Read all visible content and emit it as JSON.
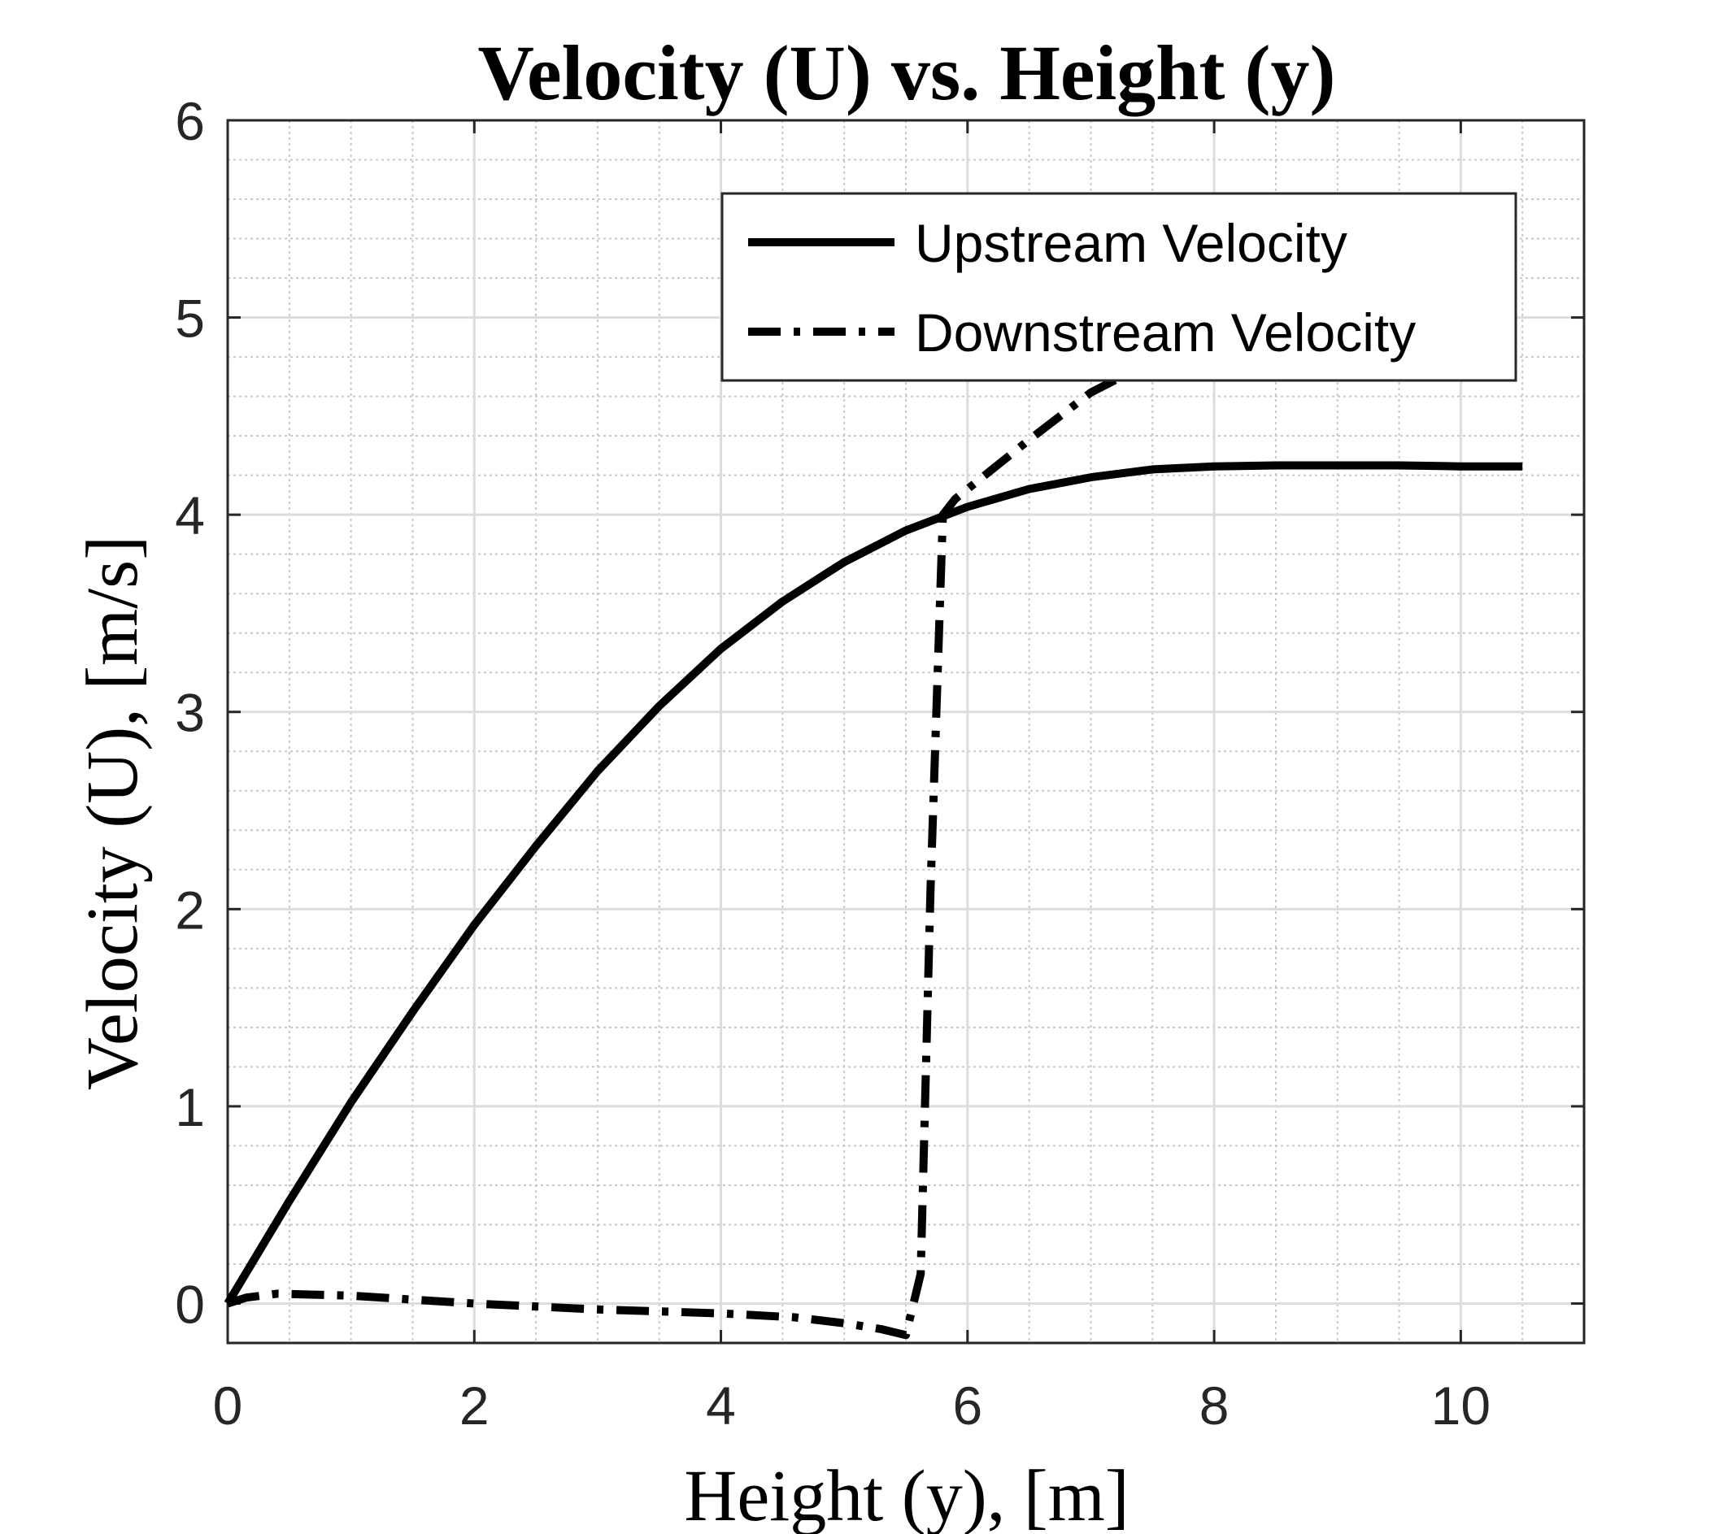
{
  "chart_data": {
    "type": "line",
    "title": "Velocity (U) vs. Height (y)",
    "xlabel": "Height (y), [m]",
    "ylabel": "Velocity (U), [m/s]",
    "xlim": [
      0,
      11
    ],
    "ylim": [
      -0.2,
      6
    ],
    "xticks": [
      0,
      2,
      4,
      6,
      8,
      10
    ],
    "yticks": [
      0,
      1,
      2,
      3,
      4,
      5,
      6
    ],
    "grid": true,
    "minor_grid": true,
    "legend": "top-right",
    "series": [
      {
        "name": "Upstream Velocity",
        "style": "solid",
        "color": "#000000",
        "x": [
          0,
          0.5,
          1,
          1.5,
          2,
          2.5,
          3,
          3.5,
          4,
          4.5,
          5,
          5.5,
          6,
          6.5,
          7,
          7.5,
          8,
          8.5,
          9,
          9.5,
          10,
          10.5
        ],
        "y": [
          0,
          0.52,
          1.02,
          1.48,
          1.92,
          2.32,
          2.7,
          3.03,
          3.32,
          3.56,
          3.76,
          3.92,
          4.04,
          4.13,
          4.19,
          4.23,
          4.245,
          4.25,
          4.25,
          4.25,
          4.245,
          4.245
        ]
      },
      {
        "name": "Downstream Velocity",
        "style": "dashdot",
        "color": "#000000",
        "x": [
          0,
          0.15,
          0.4,
          1,
          2,
          3,
          4,
          4.6,
          5,
          5.3,
          5.5,
          5.62,
          5.7,
          5.8,
          5.9,
          6.5,
          7,
          7.5,
          8,
          8.5,
          9,
          9.5,
          10,
          10.5
        ],
        "y": [
          0,
          0.03,
          0.05,
          0.04,
          0,
          -0.03,
          -0.05,
          -0.07,
          -0.1,
          -0.13,
          -0.16,
          0.15,
          2.1,
          4.0,
          4.08,
          4.38,
          4.62,
          4.78,
          4.88,
          4.96,
          5.02,
          5.08,
          5.13,
          5.17
        ]
      }
    ]
  }
}
